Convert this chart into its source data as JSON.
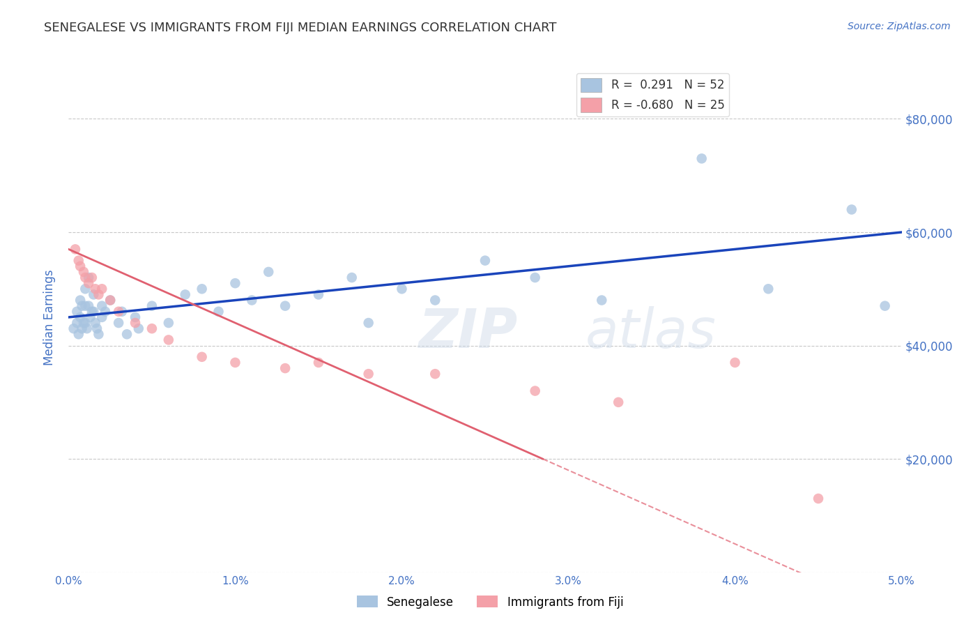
{
  "title": "SENEGALESE VS IMMIGRANTS FROM FIJI MEDIAN EARNINGS CORRELATION CHART",
  "source_text": "Source: ZipAtlas.com",
  "ylabel": "Median Earnings",
  "xlim": [
    0.0,
    0.05
  ],
  "ylim": [
    0,
    90000
  ],
  "yticks": [
    0,
    20000,
    40000,
    60000,
    80000
  ],
  "ytick_labels_right": [
    "$20,000",
    "$40,000",
    "$60,000",
    "$80,000"
  ],
  "xtick_labels": [
    "0.0%",
    "1.0%",
    "2.0%",
    "3.0%",
    "4.0%",
    "5.0%"
  ],
  "xticks": [
    0.0,
    0.01,
    0.02,
    0.03,
    0.04,
    0.05
  ],
  "legend_labels": [
    "Senegalese",
    "Immigrants from Fiji"
  ],
  "watermark": "ZIPatlas",
  "watermark_color": "#ccd9e8",
  "background_color": "#ffffff",
  "title_color": "#333333",
  "title_fontsize": 13,
  "axis_label_color": "#4472c4",
  "tick_label_color": "#4472c4",
  "grid_color": "#c8c8c8",
  "senegalese_color": "#a8c4e0",
  "fiji_color": "#f4a0a8",
  "trend_blue_color": "#1a44bb",
  "trend_pink_color": "#e06070",
  "R_senegalese": 0.291,
  "N_senegalese": 52,
  "R_fiji": -0.68,
  "N_fiji": 25,
  "senegalese_x": [
    0.0003,
    0.0005,
    0.0005,
    0.0006,
    0.0007,
    0.0007,
    0.0008,
    0.0008,
    0.0009,
    0.001,
    0.001,
    0.001,
    0.0011,
    0.0012,
    0.0012,
    0.0013,
    0.0014,
    0.0015,
    0.0015,
    0.0016,
    0.0017,
    0.0018,
    0.002,
    0.002,
    0.0022,
    0.0025,
    0.003,
    0.0032,
    0.0035,
    0.004,
    0.0042,
    0.005,
    0.006,
    0.007,
    0.008,
    0.009,
    0.01,
    0.011,
    0.012,
    0.013,
    0.015,
    0.017,
    0.018,
    0.02,
    0.022,
    0.025,
    0.028,
    0.032,
    0.038,
    0.042,
    0.047,
    0.049
  ],
  "senegalese_y": [
    43000,
    46000,
    44000,
    42000,
    48000,
    45000,
    47000,
    43000,
    44000,
    50000,
    47000,
    44000,
    43000,
    52000,
    47000,
    45000,
    46000,
    49000,
    46000,
    44000,
    43000,
    42000,
    47000,
    45000,
    46000,
    48000,
    44000,
    46000,
    42000,
    45000,
    43000,
    47000,
    44000,
    49000,
    50000,
    46000,
    51000,
    48000,
    53000,
    47000,
    49000,
    52000,
    44000,
    50000,
    48000,
    55000,
    52000,
    48000,
    73000,
    50000,
    64000,
    47000
  ],
  "fiji_x": [
    0.0004,
    0.0006,
    0.0007,
    0.0009,
    0.001,
    0.0012,
    0.0014,
    0.0016,
    0.0018,
    0.002,
    0.0025,
    0.003,
    0.004,
    0.005,
    0.006,
    0.008,
    0.01,
    0.013,
    0.015,
    0.018,
    0.022,
    0.028,
    0.033,
    0.04,
    0.045
  ],
  "fiji_y": [
    57000,
    55000,
    54000,
    53000,
    52000,
    51000,
    52000,
    50000,
    49000,
    50000,
    48000,
    46000,
    44000,
    43000,
    41000,
    38000,
    37000,
    36000,
    37000,
    35000,
    35000,
    32000,
    30000,
    37000,
    13000
  ]
}
